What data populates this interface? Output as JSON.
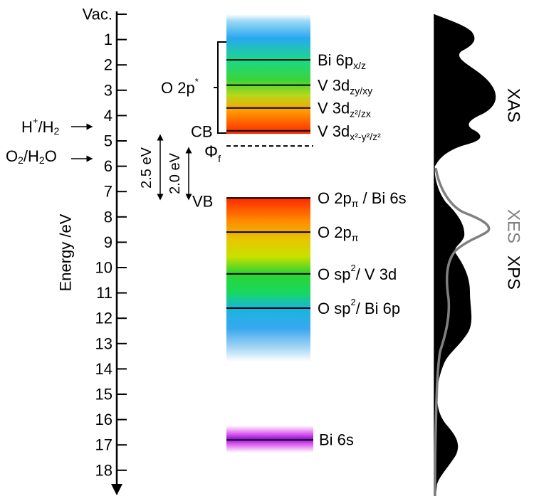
{
  "axis": {
    "label": "Energy /eV",
    "top_label": "Vac.",
    "ticks": [
      "1",
      "2",
      "3",
      "4",
      "5",
      "6",
      "7",
      "8",
      "9",
      "10",
      "11",
      "12",
      "13",
      "14",
      "15",
      "16",
      "17",
      "18"
    ]
  },
  "redox": {
    "h_plus": {
      "main": "H",
      "sup": "+",
      "rest": "/H",
      "sub": "2"
    },
    "o2": {
      "main": "O",
      "sub": "2",
      "rest": "/H",
      "sub2": "2",
      "tail": "O"
    }
  },
  "gaps": {
    "outer": "2.5 eV",
    "inner": "2.0 eV"
  },
  "labels": {
    "o2p_star": "O 2p",
    "o2p_star_sup": "*",
    "cb": "CB",
    "vb": "VB",
    "phi": "Φ",
    "phi_sub": "f"
  },
  "cb_levels": [
    {
      "energy": 1.8,
      "main": "Bi 6p",
      "sub": "x/z"
    },
    {
      "energy": 2.8,
      "main": "V 3d",
      "sub": "zy/xy"
    },
    {
      "energy": 3.7,
      "main": "V 3d",
      "sub": "z²/zx"
    },
    {
      "energy": 4.6,
      "main": "V 3d",
      "sub": "x²-y²/z²"
    }
  ],
  "vb_levels": [
    {
      "energy": 7.25,
      "text": "O 2p",
      "sub": "π",
      "tail": "/ Bi 6s"
    },
    {
      "energy": 8.6,
      "text": "O 2p",
      "sub": "π",
      "tail": ""
    },
    {
      "energy": 10.25,
      "text": "O sp",
      "sup": "2",
      "tail": "/ V 3d"
    },
    {
      "energy": 11.6,
      "text": "O sp",
      "sup": "2",
      "tail": "/ Bi 6p"
    }
  ],
  "deep_level": {
    "energy": 16.8,
    "text": "Bi 6s"
  },
  "fermi_energy": 5.2,
  "spectra": {
    "xas": "XAS",
    "xes": "XES",
    "xps": "XPS",
    "colors": {
      "xas_xps_fill": "#000000",
      "xes_line": "#808080",
      "xes_label": "#808080"
    }
  },
  "colors": {
    "cb_gradient": [
      "#00ffff",
      "#00d000",
      "#ffb000",
      "#ff2000"
    ],
    "bi6s": "#a020f0"
  }
}
